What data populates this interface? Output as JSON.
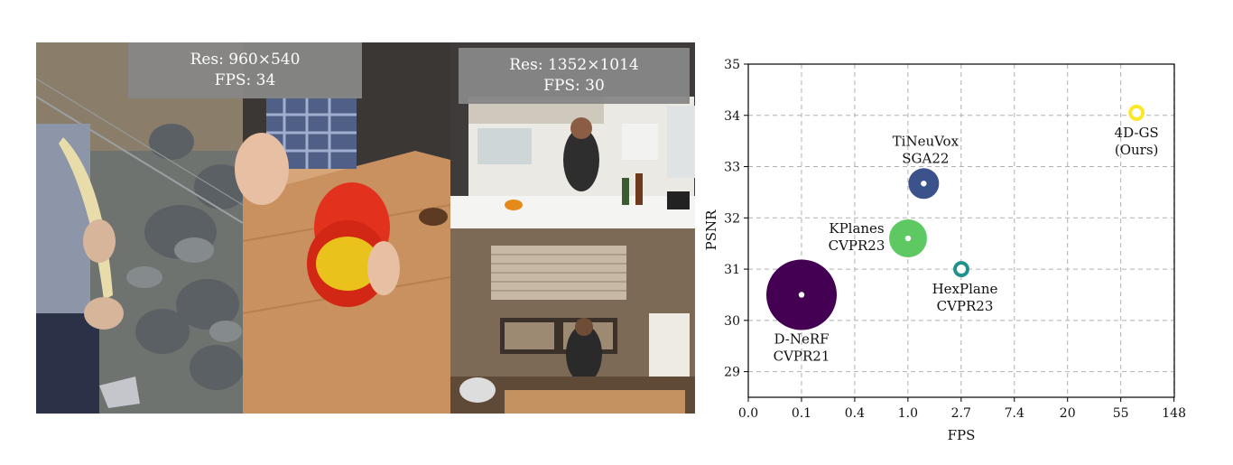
{
  "figure_left": {
    "resolution_text": "Res: 960×540",
    "fps_text": "FPS: 34"
  },
  "figure_right": {
    "resolution_text": "Res: 1352×1014",
    "fps_text": "FPS: 30"
  },
  "chart_data": {
    "type": "scatter",
    "xlabel": "FPS",
    "ylabel": "PSNR",
    "x_tick_labels": [
      "0.0",
      "0.1",
      "0.4",
      "1.0",
      "2.7",
      "7.4",
      "20",
      "55",
      "148"
    ],
    "y_ticks": [
      29,
      30,
      31,
      32,
      33,
      34,
      35
    ],
    "ylim": [
      28.5,
      35
    ],
    "grid": true,
    "points": [
      {
        "label_line1": "D-NeRF",
        "label_line2": "CVPR21",
        "fps": 0.1,
        "psnr": 30.5,
        "color": "#440154",
        "size": "very-large",
        "marker": "filled"
      },
      {
        "label_line1": "KPlanes",
        "label_line2": "CVPR23",
        "fps": 1.0,
        "psnr": 31.6,
        "color": "#5ec962",
        "size": "medium",
        "marker": "filled"
      },
      {
        "label_line1": "HexPlane",
        "label_line2": "CVPR23",
        "fps": 2.7,
        "psnr": 31.0,
        "color": "#21918c",
        "size": "small",
        "marker": "ring"
      },
      {
        "label_line1": "TiNeuVox",
        "label_line2": "SGA22",
        "fps": 1.5,
        "psnr": 32.67,
        "color": "#3b528b",
        "size": "medium-small",
        "marker": "filled"
      },
      {
        "label_line1": "4D-GS",
        "label_line2": "(Ours)",
        "fps": 82,
        "psnr": 34.05,
        "color": "#fde725",
        "size": "small",
        "marker": "ring"
      }
    ]
  }
}
